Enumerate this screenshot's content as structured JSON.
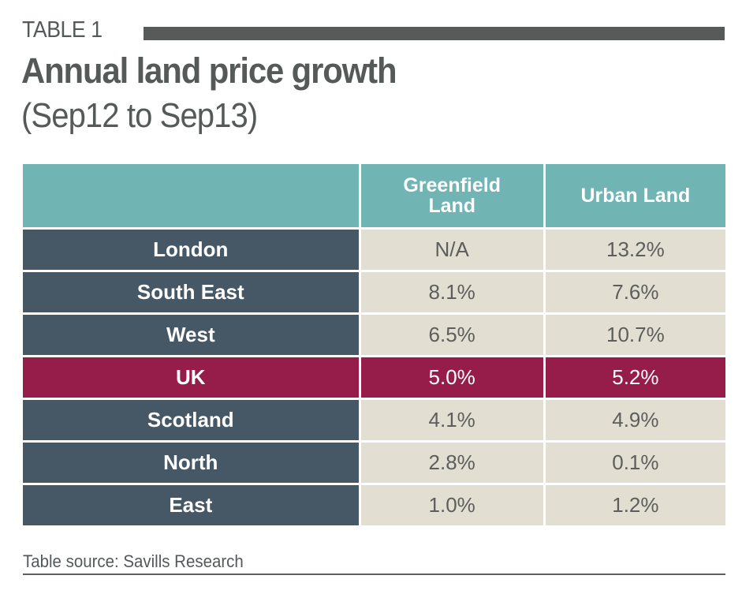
{
  "kicker": "TABLE 1",
  "title": "Annual land price growth",
  "subtitle": "(Sep12 to Sep13)",
  "source": "Table source: Savills Research",
  "colors": {
    "header": "#70b4b4",
    "region_cell": "#465866",
    "value_cell": "#e2ded2",
    "highlight": "#961d4a",
    "title_text": "#555a59"
  },
  "chart_data": {
    "type": "table",
    "title": "Annual land price growth",
    "subtitle": "(Sep12 to Sep13)",
    "columns": [
      "",
      "Greenfield Land",
      "Urban Land"
    ],
    "rows": [
      {
        "region": "London",
        "greenfield": "N/A",
        "urban": "13.2%",
        "highlight": false
      },
      {
        "region": "South East",
        "greenfield": "8.1%",
        "urban": "7.6%",
        "highlight": false
      },
      {
        "region": "West",
        "greenfield": "6.5%",
        "urban": "10.7%",
        "highlight": false
      },
      {
        "region": "UK",
        "greenfield": "5.0%",
        "urban": "5.2%",
        "highlight": true
      },
      {
        "region": "Scotland",
        "greenfield": "4.1%",
        "urban": "4.9%",
        "highlight": false
      },
      {
        "region": "North",
        "greenfield": "2.8%",
        "urban": "0.1%",
        "highlight": false
      },
      {
        "region": "East",
        "greenfield": "1.0%",
        "urban": "1.2%",
        "highlight": false
      }
    ],
    "source": "Table source: Savills Research"
  }
}
